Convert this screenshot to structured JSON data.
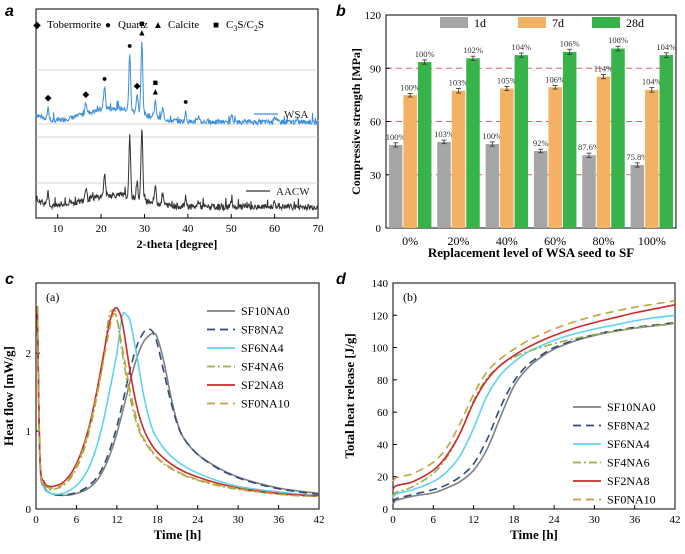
{
  "figure": {
    "panel_labels": [
      "a",
      "b",
      "c",
      "d"
    ]
  },
  "chart_data": [
    {
      "panel": "a",
      "type": "line",
      "xlabel": "2-theta [degree]",
      "xlim": [
        5,
        70
      ],
      "xticks": [
        10,
        20,
        30,
        40,
        50,
        60,
        70
      ],
      "series": [
        {
          "name": "WSA",
          "color": "#3b8fdc"
        },
        {
          "name": "AACW",
          "color": "#333333"
        }
      ],
      "legend": [
        {
          "marker": "◆",
          "text": "Tobermorite"
        },
        {
          "marker": "●",
          "text": "Quartz"
        },
        {
          "marker": "▲",
          "text": "Calcite"
        },
        {
          "marker": "■",
          "text": "C3S/C2S"
        }
      ],
      "phase_markers": [
        {
          "symbol": "◆",
          "x": 7.8
        },
        {
          "symbol": "◆",
          "x": 16.5
        },
        {
          "symbol": "●",
          "x": 20.8
        },
        {
          "symbol": "●",
          "x": 26.6
        },
        {
          "symbol": "◆",
          "x": 28.3
        },
        {
          "symbol": "▲",
          "x": 29.4
        },
        {
          "symbol": "■",
          "x": 29.4
        },
        {
          "symbol": "▲",
          "x": 32.5
        },
        {
          "symbol": "■",
          "x": 32.5
        },
        {
          "symbol": "●",
          "x": 39.5
        }
      ],
      "peaks": [
        {
          "x": 7.8,
          "h": 0.45
        },
        {
          "x": 16.5,
          "h": 0.4
        },
        {
          "x": 20.8,
          "h": 0.75
        },
        {
          "x": 26.6,
          "h": 1.9
        },
        {
          "x": 28.3,
          "h": 0.55
        },
        {
          "x": 29.4,
          "h": 2.4
        },
        {
          "x": 32.5,
          "h": 0.55
        },
        {
          "x": 34.2,
          "h": 0.35
        },
        {
          "x": 39.5,
          "h": 0.3
        },
        {
          "x": 42.5,
          "h": 0.2
        },
        {
          "x": 50.1,
          "h": 0.25
        },
        {
          "x": 60.0,
          "h": 0.2
        }
      ]
    },
    {
      "panel": "b",
      "type": "bar",
      "xlabel": "Replacement level of WSA seed to SF",
      "ylabel": "Compressive strength [MPa]",
      "ylim": [
        0,
        120
      ],
      "yticks": [
        0,
        30,
        60,
        90,
        120
      ],
      "reference_lines": [
        30,
        60,
        90
      ],
      "categories": [
        "0%",
        "20%",
        "40%",
        "60%",
        "80%",
        "100%"
      ],
      "series": [
        {
          "name": "1d",
          "color": "#a6a6a6",
          "values": [
            46.8,
            48.5,
            47.3,
            43.4,
            41.0,
            35.5
          ],
          "errors": [
            1.2,
            1.0,
            1.2,
            1.0,
            1.2,
            1.2
          ],
          "labels": [
            "100%",
            "103%",
            "100%",
            "92%",
            "87.6%",
            "75.8%"
          ]
        },
        {
          "name": "7d",
          "color": "#f3b163",
          "values": [
            74.8,
            77.3,
            78.6,
            79.3,
            85.3,
            77.8
          ],
          "errors": [
            1.0,
            1.3,
            1.2,
            1.0,
            1.2,
            1.3
          ],
          "labels": [
            "100%",
            "103%",
            "105%",
            "106%",
            "114%",
            "104%"
          ]
        },
        {
          "name": "28d",
          "color": "#37b34a",
          "values": [
            93.5,
            95.6,
            97.4,
            99.2,
            101.1,
            97.4
          ],
          "errors": [
            1.2,
            1.2,
            1.2,
            1.5,
            1.3,
            1.3
          ],
          "labels": [
            "100%",
            "102%",
            "104%",
            "106%",
            "108%",
            "104%"
          ]
        }
      ]
    },
    {
      "panel": "c",
      "type": "line",
      "inner_label": "(a)",
      "xlabel": "Time [h]",
      "ylabel": "Heat flow [mW/g]",
      "xlim": [
        0,
        42
      ],
      "ylim": [
        0,
        2.9
      ],
      "xticks": [
        0,
        6,
        12,
        18,
        24,
        30,
        36,
        42
      ],
      "yticks": [
        0,
        1,
        2
      ],
      "series": [
        {
          "name": "SF10NA0",
          "color": "#808080",
          "dash": "",
          "x": [
            0.2,
            0.6,
            1.2,
            2,
            3,
            4,
            5,
            6,
            7,
            8,
            9,
            10,
            11,
            12,
            13,
            14,
            15,
            16,
            17,
            17.5,
            18,
            19,
            20,
            21,
            22,
            24,
            27,
            30,
            33,
            36,
            39,
            42
          ],
          "y": [
            2.6,
            0.6,
            0.28,
            0.21,
            0.18,
            0.175,
            0.18,
            0.2,
            0.23,
            0.28,
            0.36,
            0.5,
            0.7,
            0.97,
            1.3,
            1.65,
            1.95,
            2.15,
            2.24,
            2.25,
            2.2,
            1.88,
            1.45,
            1.1,
            0.9,
            0.7,
            0.53,
            0.41,
            0.33,
            0.27,
            0.23,
            0.2
          ]
        },
        {
          "name": "SF8NA2",
          "color": "#2f4d7a",
          "dash": "8,5",
          "x": [
            0.2,
            0.6,
            1.2,
            2,
            3,
            4,
            5,
            6,
            7,
            8,
            9,
            10,
            11,
            12,
            13,
            14,
            15,
            16,
            16.8,
            17.5,
            18,
            19,
            20,
            21,
            22,
            24,
            27,
            30,
            33,
            36,
            39,
            42
          ],
          "y": [
            2.6,
            0.6,
            0.3,
            0.21,
            0.18,
            0.18,
            0.19,
            0.21,
            0.25,
            0.31,
            0.4,
            0.55,
            0.77,
            1.06,
            1.42,
            1.8,
            2.1,
            2.27,
            2.31,
            2.25,
            2.12,
            1.75,
            1.38,
            1.08,
            0.9,
            0.7,
            0.52,
            0.4,
            0.32,
            0.26,
            0.22,
            0.19
          ]
        },
        {
          "name": "SF6NA4",
          "color": "#5ed3ee",
          "dash": "",
          "x": [
            0.2,
            0.6,
            1.2,
            2,
            3,
            4,
            5,
            6,
            7,
            8,
            9,
            10,
            11,
            12,
            12.8,
            13.5,
            14,
            15,
            16,
            17,
            18,
            20,
            22,
            24,
            27,
            30,
            33,
            36,
            39,
            42
          ],
          "y": [
            2.6,
            0.6,
            0.3,
            0.21,
            0.19,
            0.2,
            0.24,
            0.3,
            0.4,
            0.56,
            0.8,
            1.13,
            1.55,
            2.0,
            2.48,
            2.48,
            2.4,
            1.95,
            1.45,
            1.1,
            0.9,
            0.68,
            0.55,
            0.46,
            0.36,
            0.29,
            0.25,
            0.22,
            0.19,
            0.17
          ]
        },
        {
          "name": "SF4NA6",
          "color": "#95b24a",
          "dash": "8,3,2,3",
          "x": [
            0.2,
            0.6,
            1.2,
            2,
            3,
            4,
            5,
            6,
            7,
            8,
            9,
            10,
            10.8,
            11.5,
            12,
            13,
            14,
            15,
            16,
            18,
            20,
            22,
            24,
            27,
            30,
            33,
            36,
            39,
            42
          ],
          "y": [
            2.6,
            0.6,
            0.32,
            0.25,
            0.26,
            0.3,
            0.38,
            0.52,
            0.73,
            1.03,
            1.43,
            1.93,
            2.45,
            2.56,
            2.45,
            1.9,
            1.42,
            1.08,
            0.88,
            0.65,
            0.52,
            0.43,
            0.37,
            0.3,
            0.25,
            0.22,
            0.19,
            0.17,
            0.16
          ]
        },
        {
          "name": "SF2NA8",
          "color": "#cc2a2a",
          "dash": "",
          "x": [
            0.2,
            0.6,
            1.2,
            2,
            3,
            4,
            5,
            6,
            7,
            8,
            9,
            10,
            11,
            11.8,
            12.5,
            13,
            14,
            15,
            16,
            17,
            18,
            20,
            22,
            24,
            27,
            30,
            33,
            36,
            39,
            42
          ],
          "y": [
            2.6,
            0.65,
            0.35,
            0.29,
            0.3,
            0.34,
            0.43,
            0.58,
            0.8,
            1.1,
            1.5,
            1.97,
            2.42,
            2.58,
            2.5,
            2.3,
            1.75,
            1.3,
            1.02,
            0.85,
            0.73,
            0.58,
            0.48,
            0.41,
            0.33,
            0.27,
            0.23,
            0.2,
            0.18,
            0.17
          ]
        },
        {
          "name": "SF0NA10",
          "color": "#c3a23b",
          "dash": "8,5",
          "x": [
            0.2,
            0.6,
            1.2,
            2,
            3,
            4,
            5,
            6,
            7,
            8,
            9,
            10,
            11,
            11.5,
            12,
            13,
            14,
            15,
            16,
            18,
            20,
            22,
            24,
            27,
            30,
            33,
            36,
            39,
            42
          ],
          "y": [
            2.6,
            0.6,
            0.33,
            0.27,
            0.28,
            0.32,
            0.4,
            0.55,
            0.77,
            1.07,
            1.45,
            1.9,
            2.35,
            2.5,
            2.44,
            1.98,
            1.5,
            1.13,
            0.9,
            0.66,
            0.53,
            0.44,
            0.38,
            0.31,
            0.26,
            0.22,
            0.19,
            0.17,
            0.16
          ]
        }
      ]
    },
    {
      "panel": "d",
      "type": "line",
      "inner_label": "(b)",
      "xlabel": "Time [h]",
      "ylabel": "Total heat release [J/g]",
      "xlim": [
        0,
        42
      ],
      "ylim": [
        0,
        140
      ],
      "xticks": [
        0,
        6,
        12,
        18,
        24,
        30,
        36,
        42
      ],
      "yticks": [
        0,
        20,
        40,
        60,
        80,
        100,
        120,
        140
      ],
      "series": [
        {
          "name": "SF10NA0",
          "color": "#808080",
          "dash": "",
          "x": [
            0,
            0.3,
            1,
            3,
            6,
            8,
            10,
            12,
            14,
            16,
            18,
            20,
            22,
            24,
            27,
            30,
            33,
            36,
            39,
            42
          ],
          "y": [
            3,
            5,
            6,
            8,
            10,
            13,
            17,
            24,
            37,
            57,
            76,
            87,
            94,
            99,
            104,
            107.5,
            110,
            112,
            113.5,
            115
          ]
        },
        {
          "name": "SF8NA2",
          "color": "#2f4d7a",
          "dash": "8,5",
          "x": [
            0,
            0.3,
            1,
            3,
            6,
            8,
            10,
            12,
            14,
            16,
            18,
            20,
            22,
            24,
            27,
            30,
            33,
            36,
            39,
            42
          ],
          "y": [
            4,
            6,
            7,
            9,
            12,
            15,
            20,
            28,
            43,
            63,
            79,
            89,
            95,
            100,
            104.5,
            108,
            110.5,
            112.5,
            114,
            115.5
          ]
        },
        {
          "name": "SF6NA4",
          "color": "#5ed3ee",
          "dash": "",
          "x": [
            0,
            0.3,
            1,
            3,
            6,
            8,
            10,
            12,
            14,
            16,
            18,
            20,
            22,
            24,
            27,
            30,
            33,
            36,
            39,
            42
          ],
          "y": [
            7,
            9,
            10,
            12,
            17,
            23,
            33,
            50,
            70,
            83,
            91,
            97,
            101,
            104.5,
            108.5,
            111.5,
            114,
            116.5,
            118.5,
            120
          ]
        },
        {
          "name": "SF4NA6",
          "color": "#95b24a",
          "dash": "8,3,2,3",
          "x": [
            0,
            0.3,
            1,
            3,
            6,
            8,
            10,
            12,
            14,
            16,
            18,
            20,
            22,
            24,
            27,
            30,
            33,
            36,
            39,
            42
          ],
          "y": [
            8,
            10,
            11,
            14,
            22,
            32,
            47,
            67,
            81,
            89,
            94,
            97.5,
            100,
            102.5,
            105.5,
            108,
            110,
            112,
            113.5,
            115
          ]
        },
        {
          "name": "SF2NA8",
          "color": "#cc2a2a",
          "dash": "",
          "x": [
            0,
            0.3,
            1,
            3,
            6,
            8,
            10,
            12,
            14,
            16,
            18,
            20,
            22,
            24,
            27,
            30,
            33,
            36,
            39,
            42
          ],
          "y": [
            12,
            14,
            15,
            17,
            24,
            33,
            47,
            66,
            80,
            89,
            95,
            100,
            104,
            107.5,
            112,
            115.5,
            118.5,
            121.5,
            124,
            126.5
          ]
        },
        {
          "name": "SF0NA10",
          "color": "#c3a23b",
          "dash": "8,5",
          "x": [
            0,
            0.3,
            1,
            3,
            6,
            8,
            10,
            12,
            14,
            16,
            18,
            20,
            22,
            24,
            27,
            30,
            33,
            36,
            39,
            42
          ],
          "y": [
            17,
            19,
            20,
            22,
            29,
            38,
            53,
            71,
            85,
            93,
            99,
            104,
            108,
            111.5,
            116,
            119.5,
            122.5,
            125,
            127,
            129
          ]
        }
      ]
    }
  ]
}
